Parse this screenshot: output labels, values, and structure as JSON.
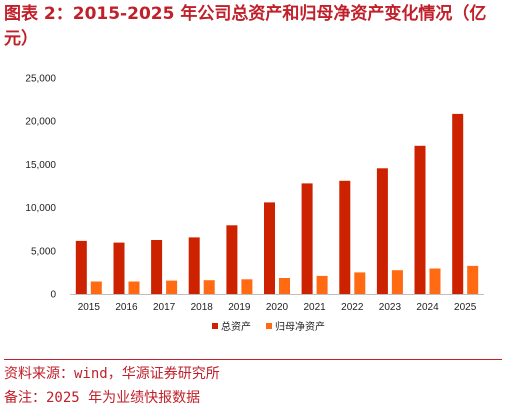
{
  "title": "图表 2：2015-2025 年公司总资产和归母净资产变化情况（亿元）",
  "source": "资料来源：wind，华源证券研究所",
  "note": "备注：2025 年为业绩快报数据",
  "colors": {
    "accent": "#c0202a",
    "total_assets": "#cc2200",
    "net_assets": "#ff6a13",
    "axis": "#bfbfbf"
  },
  "chart_data": {
    "type": "bar",
    "categories": [
      "2015",
      "2016",
      "2017",
      "2018",
      "2019",
      "2020",
      "2021",
      "2022",
      "2023",
      "2024",
      "2025"
    ],
    "series": [
      {
        "name": "总资产",
        "values": [
          6150,
          5950,
          6250,
          6550,
          7950,
          10600,
          12800,
          13100,
          14550,
          17150,
          20850
        ]
      },
      {
        "name": "归母净资产",
        "values": [
          1450,
          1450,
          1550,
          1600,
          1700,
          1850,
          2100,
          2500,
          2750,
          2950,
          3250
        ]
      }
    ],
    "yticks": [
      "0",
      "5,000",
      "10,000",
      "15,000",
      "20,000",
      "25,000"
    ],
    "ylim": [
      0,
      25000
    ],
    "grid": false,
    "legend": "bottom-center"
  }
}
